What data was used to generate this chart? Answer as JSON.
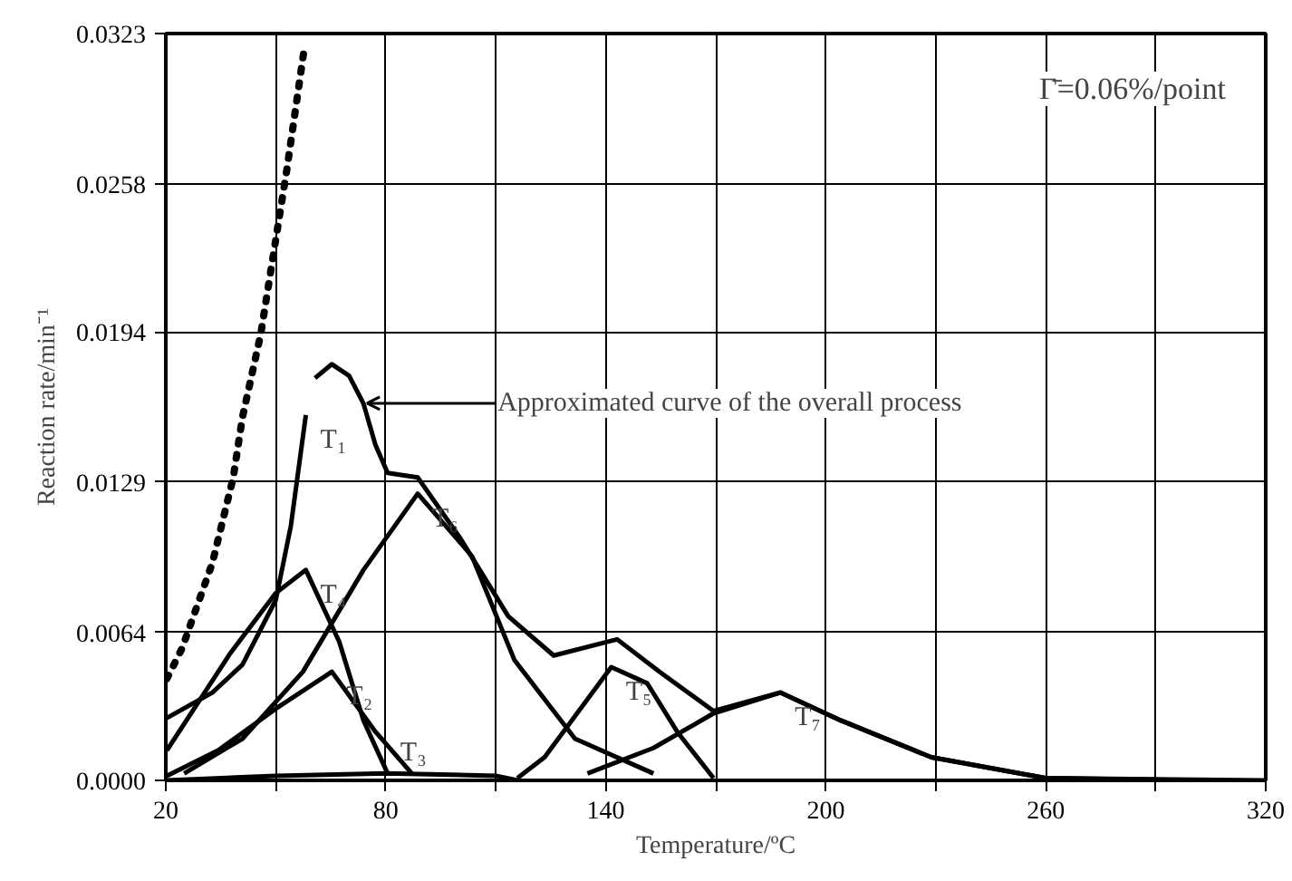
{
  "chart_data": {
    "type": "line",
    "xlabel": "Temperature/ºC",
    "ylabel": "Reaction rate/min⁻¹",
    "xlim": [
      20,
      320
    ],
    "ylim": [
      0,
      0.0323
    ],
    "xticks": [
      20,
      {
        "value": 50,
        "label": null
      },
      80,
      {
        "value": 110,
        "label": null
      },
      140,
      {
        "value": 170,
        "label": null
      },
      200,
      {
        "value": 230,
        "label": null
      },
      260,
      {
        "value": 290,
        "label": null
      },
      320
    ],
    "yticks": [
      {
        "value": 0,
        "label": "0.0000"
      },
      0.0064,
      0.0129,
      0.0194,
      0.0258,
      0.0323
    ],
    "grid": true,
    "marker": "none",
    "series": [
      {
        "color": "#000000",
        "line_style": "dotted",
        "x": [
          20.3,
          24.4,
          32.7,
          38.4,
          40.9,
          45.9,
          53.0,
          57.9
        ],
        "values": [
          0.0044,
          0.0057,
          0.0094,
          0.0131,
          0.0157,
          0.0193,
          0.0264,
          0.0318
        ]
      },
      {
        "name": "T₁",
        "color": "#000000",
        "x": [
          20.3,
          32.7,
          40.9,
          50.0,
          54.1,
          58.2
        ],
        "values": [
          0.0027,
          0.0038,
          0.005,
          0.0078,
          0.011,
          0.0158
        ]
      },
      {
        "name": "T₄",
        "color": "#000000",
        "x": [
          20.3,
          37.6,
          50.0,
          58.2,
          67.3,
          73.9,
          80.5
        ],
        "values": [
          0.0013,
          0.0055,
          0.0081,
          0.0091,
          0.006,
          0.0026,
          0.0003
        ]
      },
      {
        "name": "T₂",
        "color": "#000000",
        "x": [
          20.3,
          34.3,
          50.0,
          65.3,
          77.2,
          87.1
        ],
        "values": [
          0.0002,
          0.0013,
          0.0031,
          0.0047,
          0.0021,
          0.0003
        ]
      },
      {
        "name": "T₃",
        "color": "#000000",
        "x": [
          20,
          50,
          80,
          110,
          116
        ],
        "values": [
          0.0,
          0.0002,
          0.0003,
          0.0002,
          0.0
        ]
      },
      {
        "name": "T₆",
        "color": "#000000",
        "x": [
          25,
          40.9,
          57.4,
          73.9,
          88.7,
          103.5,
          115.1,
          131.6,
          153
        ],
        "values": [
          0.0003,
          0.0018,
          0.0047,
          0.0091,
          0.0124,
          0.0097,
          0.0052,
          0.0018,
          0.0003
        ]
      },
      {
        "name": "T₅",
        "color": "#000000",
        "x": [
          115.9,
          123.3,
          141.5,
          151.3,
          159.5,
          169.4
        ],
        "values": [
          0.0001,
          0.001,
          0.0049,
          0.0042,
          0.0021,
          0.0001
        ]
      },
      {
        "name": "T₇",
        "color": "#000000",
        "x": [
          135,
          153,
          169.4,
          187.6,
          204,
          228.8,
          260,
          300
        ],
        "values": [
          0.0003,
          0.0014,
          0.0029,
          0.0038,
          0.0026,
          0.001,
          0.0001,
          0.0
        ]
      },
      {
        "color": "#000000",
        "x": [
          60.7,
          65.3,
          70.0,
          73.9,
          77.2,
          80.5,
          88.7,
          100.2,
          113.4,
          125.8,
          143.1,
          154.6,
          169.4,
          187.6,
          204,
          228.8,
          260,
          320
        ],
        "values": [
          0.0174,
          0.018,
          0.0175,
          0.0163,
          0.0145,
          0.0133,
          0.0131,
          0.0105,
          0.0071,
          0.0054,
          0.0061,
          0.0047,
          0.003,
          0.0038,
          0.0026,
          0.001,
          0.0001,
          0.0
        ]
      }
    ],
    "annotations": [
      "Approximated curve of the overall process",
      "Γ̄=0.06%/point"
    ]
  }
}
